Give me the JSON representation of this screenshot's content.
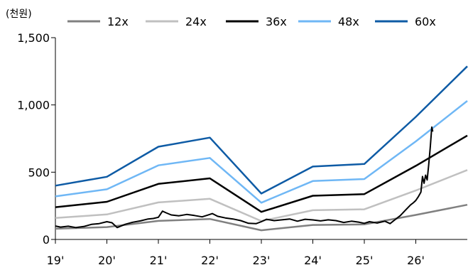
{
  "chart_data": {
    "type": "line",
    "unit_label": "(천원)",
    "y_ticks": [
      "0",
      "500",
      "1,000",
      "1,500"
    ],
    "x_ticks": [
      "19'",
      "20'",
      "21'",
      "22'",
      "23'",
      "24'",
      "25'",
      "26'"
    ],
    "x": [
      2019,
      2020,
      2021,
      2022,
      2023,
      2024,
      2025,
      2026,
      2027
    ],
    "ylim": [
      0,
      1500
    ],
    "xlim": [
      2019,
      2027
    ],
    "grid": false,
    "legend_position": "top",
    "series": [
      {
        "name": "12x",
        "color": "#808080",
        "width": 2.5,
        "values": [
          80,
          92,
          138,
          152,
          68,
          108,
          112,
          182,
          258
        ]
      },
      {
        "name": "24x",
        "color": "#c0c0c0",
        "width": 2.5,
        "values": [
          160,
          186,
          275,
          302,
          137,
          217,
          224,
          364,
          516
        ]
      },
      {
        "name": "36x",
        "color": "#000000",
        "width": 2.5,
        "values": [
          240,
          280,
          413,
          454,
          205,
          325,
          337,
          547,
          772
        ]
      },
      {
        "name": "48x",
        "color": "#6fb7f5",
        "width": 2.5,
        "values": [
          320,
          373,
          551,
          606,
          273,
          434,
          449,
          729,
          1030
        ]
      },
      {
        "name": "60x",
        "color": "#0e5ba5",
        "width": 2.5,
        "values": [
          400,
          466,
          689,
          757,
          341,
          542,
          561,
          911,
          1287
        ]
      }
    ],
    "price": {
      "color": "#000000",
      "width": 2,
      "points": [
        [
          2019.0,
          100
        ],
        [
          2019.1,
          92
        ],
        [
          2019.25,
          98
        ],
        [
          2019.4,
          88
        ],
        [
          2019.55,
          96
        ],
        [
          2019.7,
          112
        ],
        [
          2019.85,
          118
        ],
        [
          2020.0,
          132
        ],
        [
          2020.1,
          124
        ],
        [
          2020.2,
          88
        ],
        [
          2020.35,
          112
        ],
        [
          2020.5,
          128
        ],
        [
          2020.65,
          138
        ],
        [
          2020.8,
          152
        ],
        [
          2020.9,
          156
        ],
        [
          2021.0,
          165
        ],
        [
          2021.08,
          210
        ],
        [
          2021.15,
          198
        ],
        [
          2021.25,
          182
        ],
        [
          2021.4,
          176
        ],
        [
          2021.55,
          186
        ],
        [
          2021.7,
          178
        ],
        [
          2021.85,
          168
        ],
        [
          2021.95,
          180
        ],
        [
          2022.05,
          192
        ],
        [
          2022.15,
          172
        ],
        [
          2022.3,
          160
        ],
        [
          2022.45,
          152
        ],
        [
          2022.6,
          140
        ],
        [
          2022.75,
          120
        ],
        [
          2022.9,
          118
        ],
        [
          2023.0,
          132
        ],
        [
          2023.1,
          150
        ],
        [
          2023.25,
          140
        ],
        [
          2023.4,
          146
        ],
        [
          2023.55,
          152
        ],
        [
          2023.7,
          136
        ],
        [
          2023.85,
          150
        ],
        [
          2024.0,
          145
        ],
        [
          2024.15,
          138
        ],
        [
          2024.3,
          146
        ],
        [
          2024.45,
          140
        ],
        [
          2024.6,
          126
        ],
        [
          2024.75,
          136
        ],
        [
          2024.9,
          128
        ],
        [
          2025.0,
          120
        ],
        [
          2025.1,
          132
        ],
        [
          2025.25,
          122
        ],
        [
          2025.4,
          136
        ],
        [
          2025.5,
          118
        ],
        [
          2025.6,
          148
        ],
        [
          2025.7,
          178
        ],
        [
          2025.8,
          218
        ],
        [
          2025.9,
          258
        ],
        [
          2025.95,
          272
        ],
        [
          2026.0,
          290
        ],
        [
          2026.05,
          318
        ],
        [
          2026.1,
          352
        ],
        [
          2026.13,
          468
        ],
        [
          2026.16,
          418
        ],
        [
          2026.19,
          478
        ],
        [
          2026.22,
          442
        ],
        [
          2026.25,
          552
        ],
        [
          2026.28,
          682
        ],
        [
          2026.31,
          835
        ],
        [
          2026.33,
          802
        ]
      ]
    }
  }
}
